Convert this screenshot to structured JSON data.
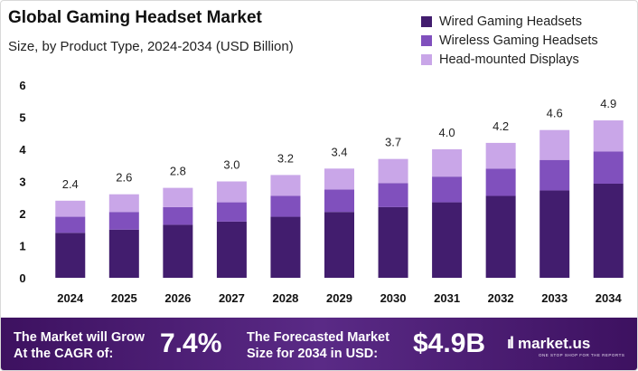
{
  "header": {
    "title": "Global Gaming Headset Market",
    "subtitle": "Size, by Product Type, 2024-2034 (USD Billion)"
  },
  "colors": {
    "wired": "#421d6e",
    "wireless": "#8050bd",
    "hmd": "#c9a6e8",
    "footer": "#4a1a72"
  },
  "chart_data": {
    "type": "bar",
    "stacked": true,
    "categories": [
      "2024",
      "2025",
      "2026",
      "2027",
      "2028",
      "2029",
      "2030",
      "2031",
      "2032",
      "2033",
      "2034"
    ],
    "series": [
      {
        "name": "Wired Gaming Headsets",
        "color": "#421d6e",
        "values": [
          1.4,
          1.5,
          1.65,
          1.75,
          1.9,
          2.05,
          2.2,
          2.35,
          2.55,
          2.72,
          2.93
        ]
      },
      {
        "name": "Wireless Gaming Headsets",
        "color": "#8050bd",
        "values": [
          0.5,
          0.55,
          0.55,
          0.6,
          0.65,
          0.7,
          0.75,
          0.8,
          0.85,
          0.95,
          1.0
        ]
      },
      {
        "name": "Head-mounted Displays",
        "color": "#c9a6e8",
        "values": [
          0.5,
          0.55,
          0.6,
          0.65,
          0.65,
          0.65,
          0.75,
          0.85,
          0.8,
          0.93,
          0.97
        ]
      }
    ],
    "totals": [
      "2.4",
      "2.6",
      "2.8",
      "3.0",
      "3.2",
      "3.4",
      "3.7",
      "4.0",
      "4.2",
      "4.6",
      "4.9"
    ],
    "yticks": [
      "0",
      "1",
      "2",
      "3",
      "4",
      "5",
      "6"
    ],
    "ylim": [
      0,
      6
    ],
    "xlabel": "",
    "ylabel": "",
    "grid": false,
    "legend_position": "top-right"
  },
  "footer": {
    "cagr_label_line1": "The Market will Grow",
    "cagr_label_line2": "At the CAGR of:",
    "cagr_value": "7.4%",
    "forecast_label_line1": "The Forecasted Market",
    "forecast_label_line2": "Size for 2034 in USD:",
    "forecast_value": "$4.9B",
    "brand_name": "market.us",
    "brand_tagline": "ONE STOP SHOP FOR THE REPORTS"
  }
}
